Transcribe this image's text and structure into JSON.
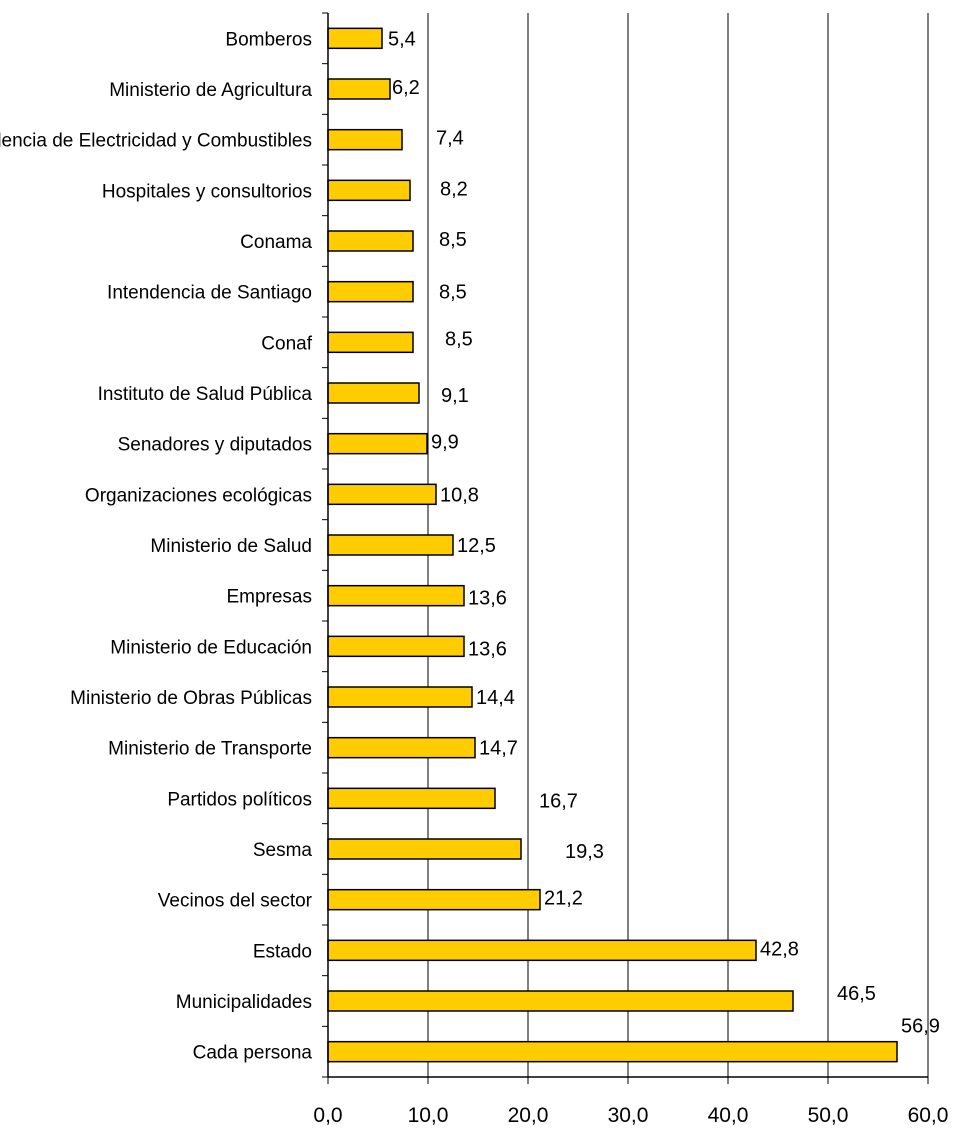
{
  "chart_data": {
    "type": "bar",
    "orientation": "horizontal",
    "title": "",
    "xlabel": "",
    "ylabel": "",
    "xlim": [
      0,
      60
    ],
    "x_ticks": [
      "0,0",
      "10,0",
      "20,0",
      "30,0",
      "40,0",
      "50,0",
      "60,0"
    ],
    "grid": "vertical",
    "bar_color": "#FFCC00",
    "bar_border_color": "#000000",
    "categories": [
      "Bomberos",
      "Ministerio de Agricultura",
      "Superintendencia de Electricidad y Combustibles",
      "Hospitales y consultorios",
      "Conama",
      "Intendencia de Santiago",
      "Conaf",
      "Instituto de Salud Pública",
      "Senadores y diputados",
      "Organizaciones ecológicas",
      "Ministerio de Salud",
      "Empresas",
      "Ministerio de Educación",
      "Ministerio de Obras Públicas",
      "Ministerio de Transporte",
      "Partidos políticos",
      "Sesma",
      "Vecinos del sector",
      "Estado",
      "Municipalidades",
      "Cada persona"
    ],
    "values": [
      5.4,
      6.2,
      7.4,
      8.2,
      8.5,
      8.5,
      8.5,
      9.1,
      9.9,
      10.8,
      12.5,
      13.6,
      13.6,
      14.4,
      14.7,
      16.7,
      19.3,
      21.2,
      42.8,
      46.5,
      56.9
    ],
    "data_labels": [
      "5,4",
      "6,2",
      "7,4",
      "8,2",
      "8,5",
      "8,5",
      "8,5",
      "9,1",
      "9,9",
      "10,8",
      "12,5",
      "13,6",
      "13,6",
      "14,4",
      "14,7",
      "16,7",
      "19,3",
      "21,2",
      "42,8",
      "46,5",
      "56,9"
    ]
  }
}
